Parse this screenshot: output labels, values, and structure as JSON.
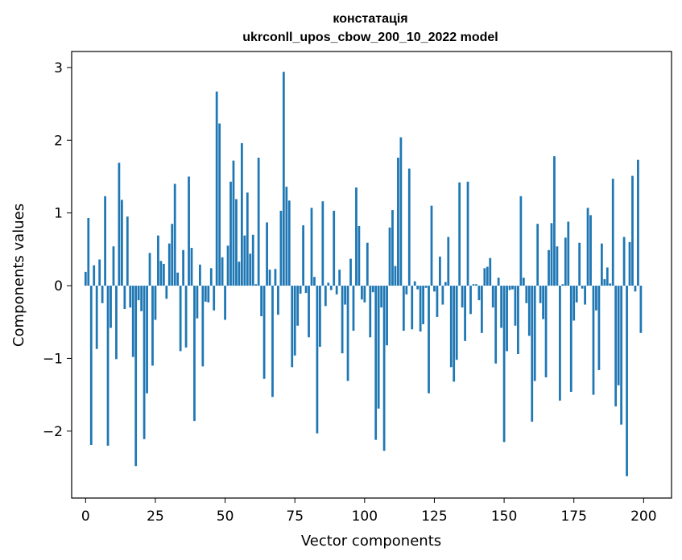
{
  "chart_data": {
    "type": "bar",
    "title": "констатація",
    "subtitle": "ukrconll_upos_cbow_200_10_2022 model",
    "xlabel": "Vector components",
    "ylabel": "Components values",
    "xlim": [
      -5,
      210
    ],
    "ylim": [
      -2.92,
      3.22
    ],
    "xticks": [
      0,
      25,
      50,
      75,
      100,
      125,
      150,
      175,
      200
    ],
    "yticks": [
      -2,
      -1,
      0,
      1,
      2,
      3
    ],
    "xtick_labels": [
      "0",
      "25",
      "50",
      "75",
      "100",
      "125",
      "150",
      "175",
      "200"
    ],
    "ytick_labels": [
      "−2",
      "−1",
      "0",
      "1",
      "2",
      "3"
    ],
    "bar_color": "#1f77b4",
    "grid": false,
    "x": [
      0,
      1,
      2,
      3,
      4,
      5,
      6,
      7,
      8,
      9,
      10,
      11,
      12,
      13,
      14,
      15,
      16,
      17,
      18,
      19,
      20,
      21,
      22,
      23,
      24,
      25,
      26,
      27,
      28,
      29,
      30,
      31,
      32,
      33,
      34,
      35,
      36,
      37,
      38,
      39,
      40,
      41,
      42,
      43,
      44,
      45,
      46,
      47,
      48,
      49,
      50,
      51,
      52,
      53,
      54,
      55,
      56,
      57,
      58,
      59,
      60,
      61,
      62,
      63,
      64,
      65,
      66,
      67,
      68,
      69,
      70,
      71,
      72,
      73,
      74,
      75,
      76,
      77,
      78,
      79,
      80,
      81,
      82,
      83,
      84,
      85,
      86,
      87,
      88,
      89,
      90,
      91,
      92,
      93,
      94,
      95,
      96,
      97,
      98,
      99,
      100,
      101,
      102,
      103,
      104,
      105,
      106,
      107,
      108,
      109,
      110,
      111,
      112,
      113,
      114,
      115,
      116,
      117,
      118,
      119,
      120,
      121,
      122,
      123,
      124,
      125,
      126,
      127,
      128,
      129,
      130,
      131,
      132,
      133,
      134,
      135,
      136,
      137,
      138,
      139,
      140,
      141,
      142,
      143,
      144,
      145,
      146,
      147,
      148,
      149,
      150,
      151,
      152,
      153,
      154,
      155,
      156,
      157,
      158,
      159,
      160,
      161,
      162,
      163,
      164,
      165,
      166,
      167,
      168,
      169,
      170,
      171,
      172,
      173,
      174,
      175,
      176,
      177,
      178,
      179,
      180,
      181,
      182,
      183,
      184,
      185,
      186,
      187,
      188,
      189,
      190,
      191,
      192,
      193,
      194,
      195,
      196,
      197,
      198,
      199
    ],
    "values": [
      0.19,
      0.93,
      -2.19,
      0.28,
      -0.87,
      0.36,
      -0.24,
      1.23,
      -2.2,
      -0.58,
      0.54,
      -1.01,
      1.69,
      1.18,
      -0.32,
      0.95,
      -0.3,
      -0.98,
      -2.48,
      -0.2,
      -0.35,
      -2.11,
      -1.48,
      0.45,
      -1.1,
      -0.47,
      0.69,
      0.34,
      0.3,
      -0.18,
      0.58,
      0.85,
      1.4,
      0.18,
      -0.9,
      0.49,
      -0.85,
      1.5,
      0.52,
      -1.86,
      -0.45,
      0.29,
      -1.11,
      -0.22,
      -0.23,
      0.24,
      -0.34,
      2.67,
      2.23,
      0.39,
      -0.47,
      0.55,
      1.43,
      1.72,
      1.19,
      0.33,
      1.96,
      0.69,
      1.28,
      0.44,
      0.7,
      0.02,
      1.76,
      -0.42,
      -1.28,
      0.87,
      0.22,
      -1.53,
      0.23,
      -0.4,
      1.03,
      2.94,
      1.36,
      1.17,
      -1.12,
      -0.96,
      -0.55,
      -0.11,
      0.83,
      -0.1,
      -0.71,
      1.07,
      0.12,
      -2.03,
      -0.84,
      1.16,
      -0.28,
      0.04,
      -0.06,
      1.03,
      -0.12,
      0.22,
      -0.93,
      -0.26,
      -1.31,
      0.37,
      -0.62,
      1.35,
      0.82,
      -0.19,
      -0.23,
      0.59,
      -0.71,
      -0.09,
      -2.12,
      -1.69,
      -0.3,
      -2.27,
      -0.82,
      0.8,
      1.04,
      0.27,
      1.76,
      2.04,
      -0.62,
      -0.12,
      1.61,
      -0.6,
      0.06,
      -0.05,
      -0.63,
      -0.53,
      -0.03,
      -1.48,
      1.1,
      -0.08,
      -0.43,
      0.4,
      -0.26,
      0.05,
      0.67,
      -1.12,
      -1.32,
      -1.02,
      1.42,
      -0.3,
      -0.76,
      1.43,
      -0.39,
      0.02,
      0.02,
      -0.2,
      -0.65,
      0.24,
      0.26,
      0.38,
      -0.3,
      -1.07,
      0.11,
      -0.58,
      -2.15,
      -0.9,
      -0.06,
      -0.05,
      -0.55,
      -0.94,
      1.23,
      0.11,
      -0.24,
      -0.69,
      -1.87,
      -1.31,
      0.85,
      -0.24,
      -0.46,
      -1.26,
      0.49,
      0.86,
      1.78,
      0.54,
      -1.58,
      0.02,
      0.66,
      0.88,
      -1.46,
      -0.48,
      -0.23,
      0.59,
      -0.04,
      -0.26,
      1.07,
      0.97,
      -1.5,
      -0.34,
      -1.16,
      0.58,
      0.09,
      0.25,
      0.03,
      1.47,
      -1.66,
      -1.37,
      -1.91,
      0.67,
      -2.62,
      0.6,
      1.51,
      -0.08,
      1.73,
      -0.65
    ]
  }
}
